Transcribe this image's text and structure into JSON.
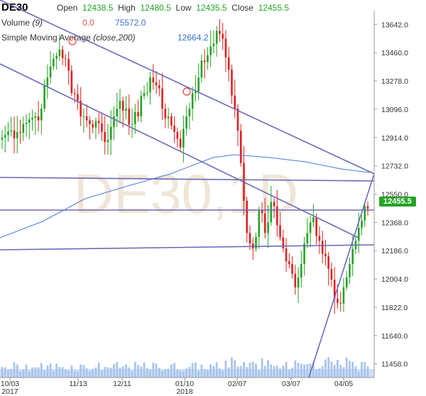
{
  "header": {
    "symbol": "DE30",
    "open_label": "Open",
    "open_value": "12438.5",
    "high_label": "High",
    "high_value": "12480.5",
    "low_label": "Low",
    "low_value": "12435.5",
    "close_label": "Close",
    "close_value": "12455.5",
    "volume_label": "Volume",
    "volume_param": "(9)",
    "volume_v1": "0.0",
    "volume_v2": "75572.0",
    "sma_label": "Simple Moving Average",
    "sma_param": "(close,200)",
    "sma_value": "12664.2"
  },
  "watermark": "DE30,1D",
  "last_price_badge": "12455.5",
  "colors": {
    "up": "#23a323",
    "down": "#e02020",
    "sma": "#4a7bd6",
    "trendline": "#6a6ab8",
    "volume": "#a8c4ec"
  },
  "chart_data": {
    "type": "candlestick",
    "title": "DE30",
    "xlabel": "",
    "ylabel": "",
    "ylim": [
      11370,
      13730
    ],
    "y_ticks": [
      "13642.0",
      "13460.0",
      "13278.0",
      "13096.0",
      "12914.0",
      "12732.0",
      "12550.0",
      "12368.0",
      "12186.0",
      "12004.0",
      "11822.0",
      "11640.0",
      "11458.0"
    ],
    "x_ticks": [
      {
        "label": "10/03",
        "sub": "2017"
      },
      {
        "label": "11/13",
        "sub": ""
      },
      {
        "label": "12/11",
        "sub": ""
      },
      {
        "label": "01/10",
        "sub": "2018"
      },
      {
        "label": "02/07",
        "sub": ""
      },
      {
        "label": "03/07",
        "sub": ""
      },
      {
        "label": "04/05",
        "sub": ""
      }
    ],
    "series": [
      {
        "name": "DE30",
        "open_close_sample": [
          [
            12900,
            12930
          ],
          [
            12930,
            12960
          ],
          [
            12960,
            12950
          ],
          [
            12950,
            13000
          ],
          [
            13000,
            13030
          ],
          [
            13030,
            13050
          ],
          [
            13050,
            13100
          ],
          [
            13100,
            13300
          ],
          [
            13300,
            13420
          ],
          [
            13420,
            13480
          ],
          [
            13480,
            13420
          ],
          [
            13420,
            13200
          ],
          [
            13200,
            13150
          ],
          [
            13150,
            13050
          ],
          [
            13050,
            13000
          ],
          [
            13000,
            13020
          ],
          [
            13020,
            12950
          ],
          [
            12950,
            12900
          ],
          [
            12900,
            13050
          ],
          [
            13050,
            13150
          ],
          [
            13150,
            13100
          ],
          [
            13100,
            13000
          ],
          [
            13000,
            13050
          ],
          [
            13050,
            13200
          ],
          [
            13200,
            13300
          ],
          [
            13300,
            13250
          ],
          [
            13250,
            13100
          ],
          [
            13100,
            13050
          ],
          [
            13050,
            12950
          ],
          [
            12950,
            12850
          ],
          [
            12850,
            13050
          ],
          [
            13050,
            13200
          ],
          [
            13200,
            13300
          ],
          [
            13300,
            13400
          ],
          [
            13400,
            13500
          ],
          [
            13500,
            13600
          ],
          [
            13600,
            13550
          ],
          [
            13550,
            13350
          ],
          [
            13350,
            13100
          ],
          [
            13100,
            12750
          ],
          [
            12750,
            12300
          ],
          [
            12300,
            12200
          ],
          [
            12200,
            12450
          ],
          [
            12450,
            12300
          ],
          [
            12300,
            12500
          ],
          [
            12500,
            12350
          ],
          [
            12350,
            12200
          ],
          [
            12200,
            12100
          ],
          [
            12100,
            11950
          ],
          [
            11950,
            12100
          ],
          [
            12100,
            12300
          ],
          [
            12300,
            12400
          ],
          [
            12400,
            12250
          ],
          [
            12250,
            12150
          ],
          [
            12150,
            12000
          ],
          [
            12000,
            11850
          ],
          [
            11850,
            11950
          ],
          [
            11950,
            12100
          ],
          [
            12100,
            12250
          ],
          [
            12250,
            12380
          ],
          [
            12380,
            12455
          ]
        ]
      }
    ],
    "sma_200": {
      "name": "Simple Moving Average (close,200)",
      "last_value": 12664.2
    },
    "volume_last": 75572.0,
    "horizontal_lines": [
      12586,
      12368,
      12175
    ]
  }
}
